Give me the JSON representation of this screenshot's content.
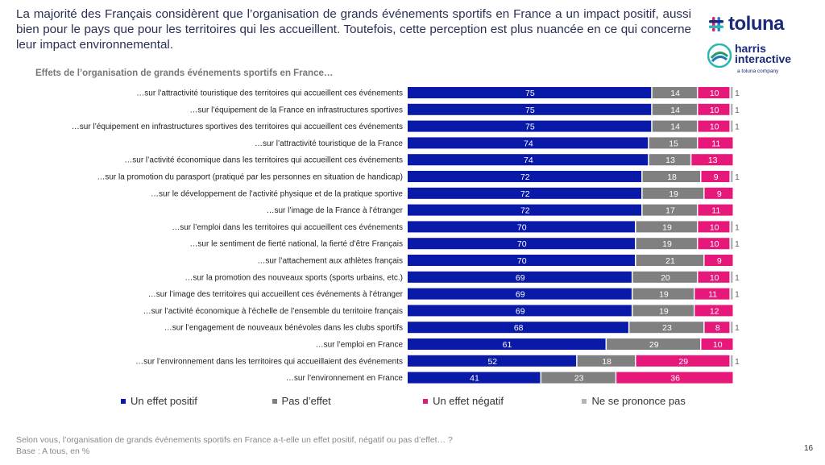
{
  "headline": "La majorité des Français considèrent que l’organisation de grands événements sportifs en France a un impact positif, aussi bien pour le pays que pour les territoires qui les accueillent. Toutefois, cette perception est plus nuancée en ce qui concerne leur impact environnemental.",
  "logo": {
    "brand": "toluna",
    "line1": "harris",
    "line2": "interactive",
    "tagline": "a toluna company"
  },
  "footnote": {
    "question": "Selon vous, l’organisation de grands événements sportifs en France a-t-elle un effet positif, négatif ou pas d’effet… ?",
    "base": "Base : A tous, en %"
  },
  "page_number": "16",
  "colors": {
    "positive": "#0a1aa8",
    "no_effect": "#808080",
    "negative": "#e6197a",
    "dont_know": "#b4b4b4"
  },
  "chart_data": {
    "type": "bar",
    "orientation": "horizontal",
    "stacked": true,
    "title": "Effets de l’organisation de grands événements sportifs en France…",
    "legend_position": "bottom",
    "categories": [
      "…sur l’attractivité touristique des territoires qui accueillent ces événements",
      "…sur l’équipement de la France en infrastructures sportives",
      "…sur l’équipement en infrastructures sportives des territoires qui accueillent ces événements",
      "…sur l’attractivité touristique de la France",
      "…sur l’activité économique dans les territoires qui accueillent ces événements",
      "…sur la promotion du parasport (pratiqué par les personnes en situation de handicap)",
      "…sur le développement de l’activité physique et de la pratique sportive",
      "…sur l’image de la France à l’étranger",
      "…sur l’emploi dans les territoires qui accueillent ces événements",
      "…sur le sentiment de fierté national, la fierté d’être Français",
      "…sur l’attachement aux athlètes français",
      "…sur la promotion des nouveaux sports (sports urbains, etc.)",
      "…sur l’image des territoires qui accueillent ces événements à l’étranger",
      "…sur l’activité économique à l’échelle de l’ensemble du territoire français",
      "…sur l’engagement de nouveaux bénévoles dans les clubs sportifs",
      "…sur l’emploi en France",
      "…sur l’environnement dans les territoires qui accueillaient des événements",
      "…sur l’environnement en France"
    ],
    "series": [
      {
        "name": "Un effet positif",
        "values": [
          75,
          75,
          75,
          74,
          74,
          72,
          72,
          72,
          70,
          70,
          70,
          69,
          69,
          69,
          68,
          61,
          52,
          41
        ]
      },
      {
        "name": "Pas d’effet",
        "values": [
          14,
          14,
          14,
          15,
          13,
          18,
          19,
          17,
          19,
          19,
          21,
          20,
          19,
          19,
          23,
          29,
          18,
          23
        ]
      },
      {
        "name": "Un effet négatif",
        "values": [
          10,
          10,
          10,
          11,
          13,
          9,
          9,
          11,
          10,
          10,
          9,
          10,
          11,
          12,
          8,
          10,
          29,
          36
        ]
      },
      {
        "name": "Ne se prononce pas",
        "values": [
          1,
          1,
          1,
          0,
          0,
          1,
          0,
          0,
          1,
          1,
          0,
          1,
          1,
          0,
          1,
          0,
          1,
          0
        ]
      }
    ],
    "xlim": [
      0,
      100
    ]
  }
}
